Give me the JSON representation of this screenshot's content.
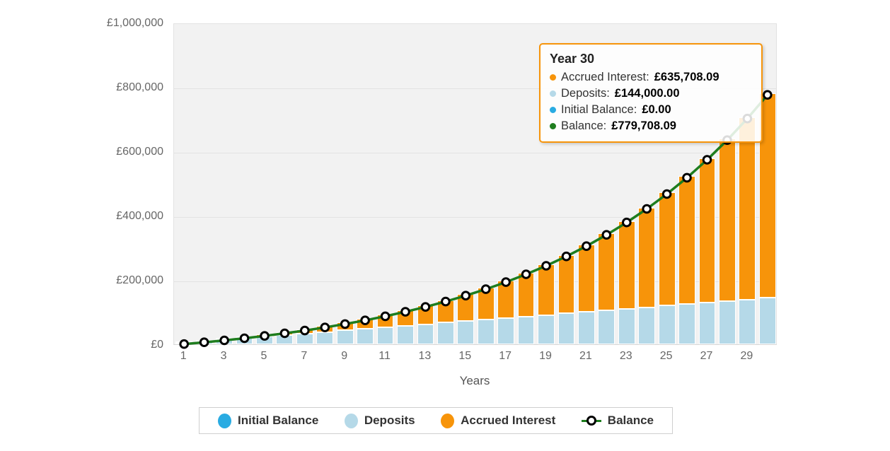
{
  "chart": {
    "y_axis": {
      "labels": [
        "£1,000,000",
        "£800,000",
        "£600,000",
        "£400,000",
        "£200,000",
        "£0"
      ]
    },
    "x_axis": {
      "title": "Years",
      "tick_labels": [
        "1",
        "3",
        "5",
        "7",
        "9",
        "11",
        "13",
        "15",
        "17",
        "19",
        "21",
        "23",
        "25",
        "27",
        "29"
      ]
    }
  },
  "tooltip": {
    "title": "Year 30",
    "rows": [
      {
        "label": "Accrued Interest",
        "value": "£635,708.09",
        "color": "#F7940A"
      },
      {
        "label": "Deposits",
        "value": "£144,000.00",
        "color": "#B5D9E8"
      },
      {
        "label": "Initial Balance",
        "value": "£0.00",
        "color": "#29ABE2"
      },
      {
        "label": "Balance",
        "value": "£779,708.09",
        "color": "#1E7D1E"
      }
    ]
  },
  "legend": {
    "items": [
      {
        "label": "Initial Balance",
        "marker": "dot",
        "color": "#29ABE2"
      },
      {
        "label": "Deposits",
        "marker": "dot",
        "color": "#B5D9E8"
      },
      {
        "label": "Accrued Interest",
        "marker": "dot",
        "color": "#F7940A"
      },
      {
        "label": "Balance",
        "marker": "line-circle",
        "color": "#1E7D1E"
      }
    ]
  },
  "colors": {
    "plot_background": "#F2F2F2",
    "gridline": "#E3E3E3",
    "axis_text": "#666666",
    "tooltip_border": "#F7940A",
    "balance_line": "#1E7D1E",
    "marker_ring": "#000000",
    "marker_fill": "#FFFFFF"
  },
  "chart_data": {
    "type": "bar",
    "subtype": "stacked-columns-with-line-overlay",
    "x": [
      1,
      2,
      3,
      4,
      5,
      6,
      7,
      8,
      9,
      10,
      11,
      12,
      13,
      14,
      15,
      16,
      17,
      18,
      19,
      20,
      21,
      22,
      23,
      24,
      25,
      26,
      27,
      28,
      29,
      30
    ],
    "series": [
      {
        "name": "Initial Balance",
        "type": "column",
        "color": "#29ABE2",
        "values": [
          0,
          0,
          0,
          0,
          0,
          0,
          0,
          0,
          0,
          0,
          0,
          0,
          0,
          0,
          0,
          0,
          0,
          0,
          0,
          0,
          0,
          0,
          0,
          0,
          0,
          0,
          0,
          0,
          0,
          0
        ]
      },
      {
        "name": "Deposits",
        "type": "column",
        "color": "#B5D9E8",
        "values": [
          4800,
          9600,
          14400,
          19200,
          24000,
          28800,
          33600,
          38400,
          43200,
          48000,
          52800,
          57600,
          62400,
          67200,
          72000,
          76800,
          81600,
          86400,
          91200,
          96000,
          100800,
          105600,
          110400,
          115200,
          120000,
          124800,
          129600,
          134400,
          139200,
          144000
        ]
      },
      {
        "name": "Accrued Interest",
        "type": "column",
        "color": "#F7940A",
        "values": [
          210,
          906,
          2136,
          3951,
          6409,
          9570,
          13505,
          18287,
          24000,
          30733,
          38585,
          47665,
          58093,
          69999,
          83526,
          98833,
          116091,
          135491,
          157239,
          181564,
          208716,
          238971,
          272627,
          310016,
          351501,
          397478,
          448383,
          504694,
          566935,
          635708.09
        ]
      },
      {
        "name": "Balance",
        "type": "line",
        "color": "#1E7D1E",
        "marker": "white-circle-black-ring",
        "values": [
          5010,
          10506,
          16536,
          23151,
          30409,
          38370,
          47105,
          56687,
          67200,
          78733,
          91385,
          105265,
          120493,
          137199,
          155526,
          175633,
          197691,
          221891,
          248439,
          277564,
          309516,
          344571,
          383027,
          425216,
          471501,
          522278,
          577983,
          639094,
          706135,
          779708.09
        ]
      }
    ],
    "title": "",
    "xlabel": "Years",
    "ylabel": "",
    "ylim": [
      0,
      1000000
    ],
    "y_tick_interval": 200000,
    "x_tick_labels": [
      1,
      3,
      5,
      7,
      9,
      11,
      13,
      15,
      17,
      19,
      21,
      23,
      25,
      27,
      29
    ],
    "grid": true,
    "legend_position": "bottom",
    "tooltip_point": {
      "x": 30,
      "balance": 779708.09,
      "deposits": 144000.0,
      "accrued_interest": 635708.09,
      "initial_balance": 0.0
    }
  }
}
